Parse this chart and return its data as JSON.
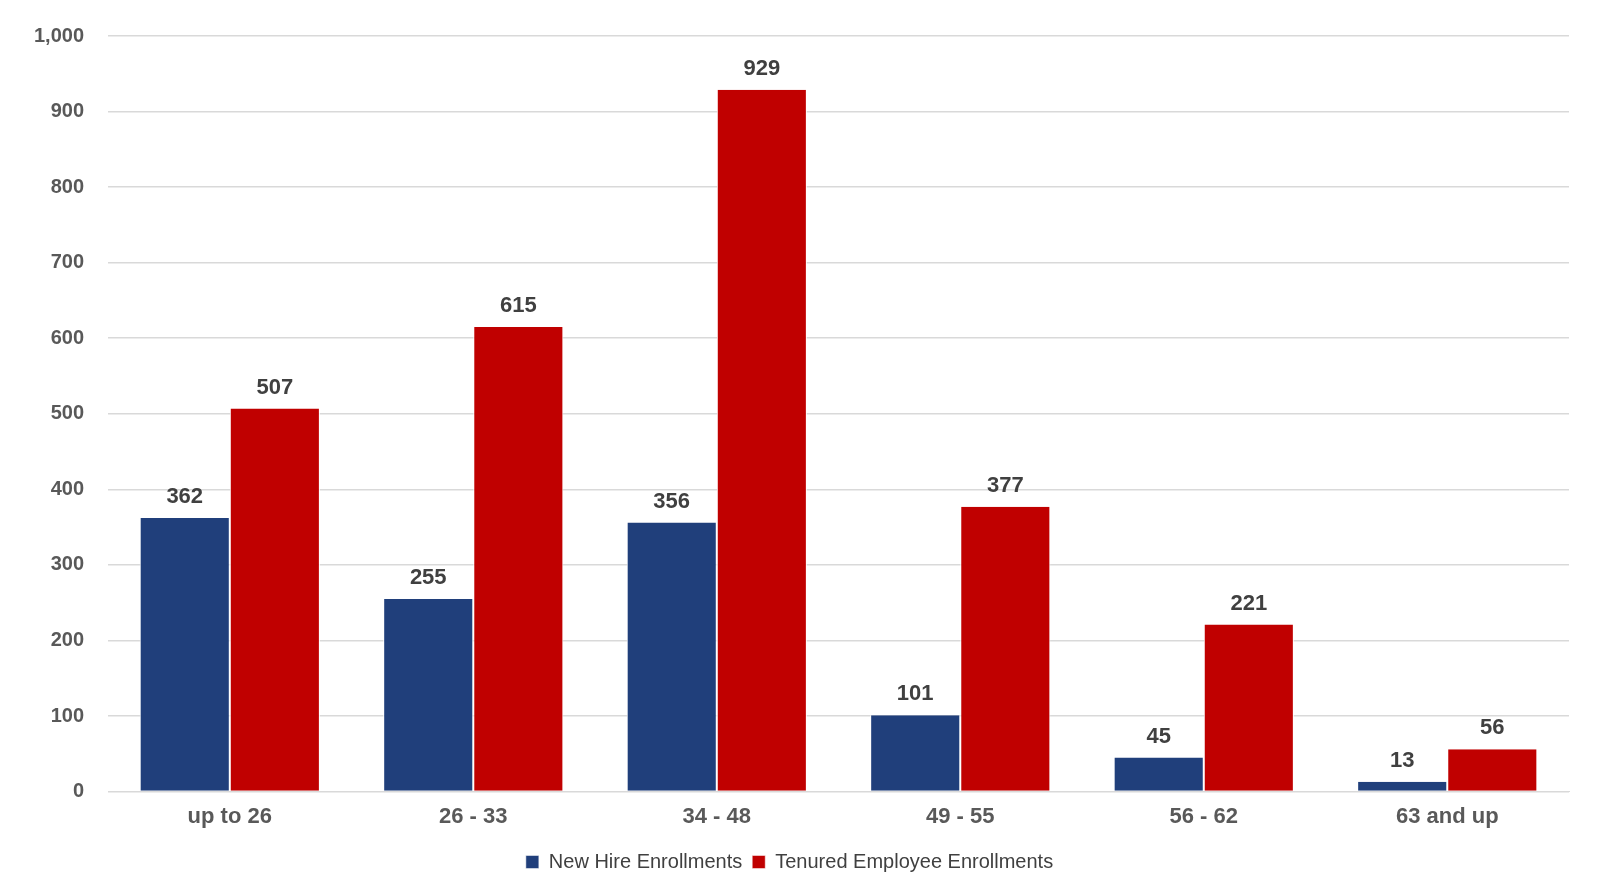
{
  "chart_data": {
    "type": "bar",
    "categories": [
      "up to 26",
      "26 - 33",
      "34 - 48",
      "49 - 55",
      "56 - 62",
      "63 and up"
    ],
    "series": [
      {
        "name": "New Hire Enrollments",
        "color": "#203f7b",
        "values": [
          362,
          255,
          356,
          101,
          45,
          13
        ]
      },
      {
        "name": "Tenured Employee Enrollments",
        "color": "#c00000",
        "values": [
          507,
          615,
          929,
          377,
          221,
          56
        ]
      }
    ],
    "ylim": [
      0,
      1000
    ],
    "yticks": [
      0,
      100,
      200,
      300,
      400,
      500,
      600,
      700,
      800,
      900,
      {
        "value": 1000,
        "label": "1,000"
      }
    ],
    "grid": "y",
    "legend": "bottom",
    "data_labels": true
  }
}
